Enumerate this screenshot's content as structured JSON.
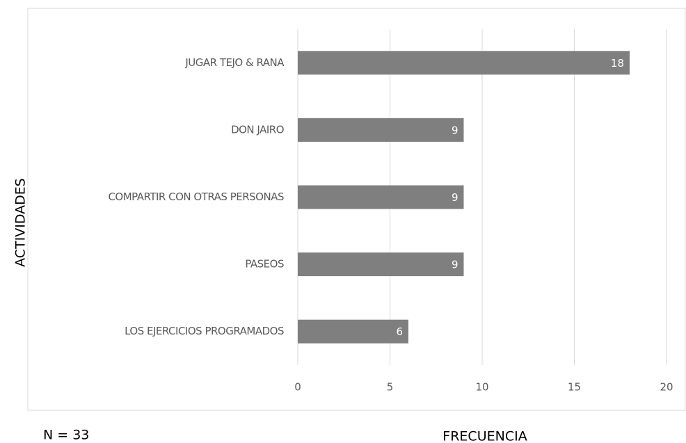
{
  "chart_data": {
    "type": "bar",
    "orientation": "horizontal",
    "categories": [
      "JUGAR TEJO & RANA",
      "DON JAIRO",
      "COMPARTIR CON OTRAS PERSONAS",
      "PASEOS",
      "LOS EJERCICIOS PROGRAMADOS"
    ],
    "values": [
      18,
      9,
      9,
      9,
      6
    ],
    "color": "#7f7f7f",
    "xlim": [
      0,
      20
    ],
    "xticks": [
      0,
      5,
      10,
      15,
      20
    ],
    "grid": true,
    "x_label": "FRECUENCIA",
    "y_label": "ACTIVIDADES",
    "annotation": "N = 33"
  }
}
